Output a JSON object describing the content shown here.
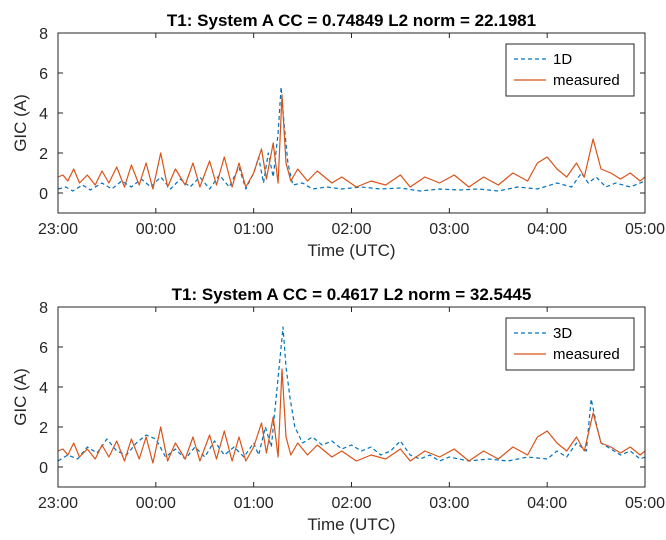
{
  "chart_data": [
    {
      "type": "line",
      "title": "T1: System A   CC = 0.74849  L2 norm = 22.1981",
      "xlabel": "Time (UTC)",
      "ylabel": "GIC (A)",
      "x_tick_labels": [
        "23:00",
        "00:00",
        "01:00",
        "02:00",
        "03:00",
        "04:00",
        "05:00"
      ],
      "x_tick_hours": [
        0,
        1,
        2,
        3,
        4,
        5,
        6
      ],
      "xlim_hours": [
        0,
        6
      ],
      "yticks": [
        0,
        2,
        4,
        6,
        8
      ],
      "ylim": [
        -1,
        8
      ],
      "legend_position": "top-right",
      "series": [
        {
          "name": "1D",
          "color": "#0072BD",
          "style": "dashed",
          "points": [
            [
              0,
              0.2
            ],
            [
              0.08,
              0.3
            ],
            [
              0.15,
              0.1
            ],
            [
              0.25,
              0.4
            ],
            [
              0.33,
              0.15
            ],
            [
              0.45,
              0.5
            ],
            [
              0.55,
              0.2
            ],
            [
              0.65,
              0.6
            ],
            [
              0.75,
              0.3
            ],
            [
              0.85,
              0.7
            ],
            [
              0.95,
              0.3
            ],
            [
              1.05,
              0.8
            ],
            [
              1.15,
              0.2
            ],
            [
              1.25,
              0.7
            ],
            [
              1.35,
              0.3
            ],
            [
              1.45,
              0.8
            ],
            [
              1.55,
              0.2
            ],
            [
              1.65,
              0.9
            ],
            [
              1.75,
              0.3
            ],
            [
              1.85,
              1.3
            ],
            [
              1.92,
              0.2
            ],
            [
              2.0,
              1.0
            ],
            [
              2.05,
              1.8
            ],
            [
              2.1,
              0.5
            ],
            [
              2.15,
              2.0
            ],
            [
              2.2,
              0.8
            ],
            [
              2.25,
              3.0
            ],
            [
              2.28,
              5.3
            ],
            [
              2.31,
              3.5
            ],
            [
              2.35,
              1.5
            ],
            [
              2.4,
              0.4
            ],
            [
              2.5,
              0.5
            ],
            [
              2.6,
              0.2
            ],
            [
              2.75,
              0.3
            ],
            [
              2.9,
              0.2
            ],
            [
              3.1,
              0.3
            ],
            [
              3.3,
              0.2
            ],
            [
              3.5,
              0.25
            ],
            [
              3.7,
              0.1
            ],
            [
              3.9,
              0.2
            ],
            [
              4.1,
              0.15
            ],
            [
              4.3,
              0.2
            ],
            [
              4.5,
              0.1
            ],
            [
              4.7,
              0.3
            ],
            [
              4.9,
              0.2
            ],
            [
              5.1,
              0.5
            ],
            [
              5.25,
              0.3
            ],
            [
              5.35,
              1.0
            ],
            [
              5.42,
              0.5
            ],
            [
              5.5,
              0.8
            ],
            [
              5.6,
              0.3
            ],
            [
              5.7,
              0.5
            ],
            [
              5.85,
              0.3
            ],
            [
              6.0,
              0.6
            ]
          ]
        },
        {
          "name": "measured",
          "color": "#D95319",
          "style": "solid",
          "points": [
            [
              0,
              0.8
            ],
            [
              0.05,
              0.9
            ],
            [
              0.1,
              0.6
            ],
            [
              0.16,
              1.2
            ],
            [
              0.22,
              0.5
            ],
            [
              0.3,
              0.9
            ],
            [
              0.38,
              0.4
            ],
            [
              0.45,
              1.1
            ],
            [
              0.52,
              0.5
            ],
            [
              0.6,
              1.3
            ],
            [
              0.68,
              0.3
            ],
            [
              0.75,
              1.4
            ],
            [
              0.83,
              0.4
            ],
            [
              0.9,
              1.5
            ],
            [
              0.97,
              0.2
            ],
            [
              1.05,
              2.0
            ],
            [
              1.12,
              0.3
            ],
            [
              1.2,
              1.2
            ],
            [
              1.3,
              0.4
            ],
            [
              1.38,
              1.5
            ],
            [
              1.45,
              0.3
            ],
            [
              1.55,
              1.6
            ],
            [
              1.62,
              0.4
            ],
            [
              1.7,
              1.8
            ],
            [
              1.78,
              0.3
            ],
            [
              1.85,
              1.5
            ],
            [
              1.92,
              0.3
            ],
            [
              2.0,
              1.0
            ],
            [
              2.08,
              2.2
            ],
            [
              2.13,
              0.7
            ],
            [
              2.2,
              2.5
            ],
            [
              2.25,
              0.5
            ],
            [
              2.29,
              4.9
            ],
            [
              2.33,
              1.5
            ],
            [
              2.38,
              0.6
            ],
            [
              2.45,
              1.2
            ],
            [
              2.55,
              0.6
            ],
            [
              2.65,
              1.1
            ],
            [
              2.8,
              0.5
            ],
            [
              2.9,
              0.8
            ],
            [
              3.05,
              0.3
            ],
            [
              3.2,
              0.6
            ],
            [
              3.35,
              0.4
            ],
            [
              3.5,
              0.9
            ],
            [
              3.6,
              0.3
            ],
            [
              3.75,
              0.8
            ],
            [
              3.9,
              0.5
            ],
            [
              4.05,
              0.9
            ],
            [
              4.2,
              0.3
            ],
            [
              4.35,
              0.8
            ],
            [
              4.5,
              0.4
            ],
            [
              4.65,
              1.0
            ],
            [
              4.8,
              0.6
            ],
            [
              4.9,
              1.5
            ],
            [
              5.0,
              1.8
            ],
            [
              5.1,
              1.2
            ],
            [
              5.2,
              0.8
            ],
            [
              5.3,
              1.5
            ],
            [
              5.38,
              0.8
            ],
            [
              5.47,
              2.7
            ],
            [
              5.55,
              1.2
            ],
            [
              5.65,
              1.0
            ],
            [
              5.75,
              0.7
            ],
            [
              5.85,
              1.0
            ],
            [
              5.95,
              0.6
            ],
            [
              6.0,
              0.8
            ]
          ]
        }
      ]
    },
    {
      "type": "line",
      "title": "T1: System A   CC = 0.4617  L2 norm = 32.5445",
      "xlabel": "Time (UTC)",
      "ylabel": "GIC (A)",
      "x_tick_labels": [
        "23:00",
        "00:00",
        "01:00",
        "02:00",
        "03:00",
        "04:00",
        "05:00"
      ],
      "x_tick_hours": [
        0,
        1,
        2,
        3,
        4,
        5,
        6
      ],
      "xlim_hours": [
        0,
        6
      ],
      "yticks": [
        0,
        2,
        4,
        6,
        8
      ],
      "ylim": [
        -1,
        8
      ],
      "legend_position": "top-right",
      "series": [
        {
          "name": "3D",
          "color": "#0072BD",
          "style": "dashed",
          "points": [
            [
              0,
              0.3
            ],
            [
              0.1,
              0.6
            ],
            [
              0.2,
              0.4
            ],
            [
              0.3,
              1.0
            ],
            [
              0.4,
              0.7
            ],
            [
              0.5,
              1.4
            ],
            [
              0.6,
              0.8
            ],
            [
              0.7,
              0.6
            ],
            [
              0.8,
              1.2
            ],
            [
              0.9,
              1.6
            ],
            [
              1.0,
              1.4
            ],
            [
              1.1,
              0.5
            ],
            [
              1.2,
              0.9
            ],
            [
              1.3,
              0.4
            ],
            [
              1.4,
              1.0
            ],
            [
              1.5,
              0.5
            ],
            [
              1.6,
              1.3
            ],
            [
              1.7,
              0.6
            ],
            [
              1.8,
              1.0
            ],
            [
              1.9,
              0.5
            ],
            [
              2.0,
              1.2
            ],
            [
              2.05,
              0.6
            ],
            [
              2.12,
              2.0
            ],
            [
              2.18,
              1.0
            ],
            [
              2.23,
              3.5
            ],
            [
              2.28,
              6.0
            ],
            [
              2.3,
              7.0
            ],
            [
              2.33,
              5.0
            ],
            [
              2.37,
              3.5
            ],
            [
              2.42,
              2.0
            ],
            [
              2.5,
              1.2
            ],
            [
              2.6,
              1.5
            ],
            [
              2.7,
              1.1
            ],
            [
              2.8,
              1.3
            ],
            [
              2.9,
              0.9
            ],
            [
              3.0,
              1.1
            ],
            [
              3.1,
              0.8
            ],
            [
              3.2,
              1.0
            ],
            [
              3.3,
              0.6
            ],
            [
              3.4,
              0.8
            ],
            [
              3.5,
              1.3
            ],
            [
              3.6,
              0.6
            ],
            [
              3.7,
              0.4
            ],
            [
              3.8,
              0.6
            ],
            [
              3.9,
              0.3
            ],
            [
              4.0,
              0.5
            ],
            [
              4.2,
              0.3
            ],
            [
              4.4,
              0.4
            ],
            [
              4.6,
              0.3
            ],
            [
              4.8,
              0.5
            ],
            [
              5.0,
              0.4
            ],
            [
              5.1,
              0.8
            ],
            [
              5.2,
              0.5
            ],
            [
              5.3,
              1.2
            ],
            [
              5.4,
              0.8
            ],
            [
              5.45,
              3.4
            ],
            [
              5.5,
              2.2
            ],
            [
              5.55,
              1.2
            ],
            [
              5.65,
              0.9
            ],
            [
              5.75,
              0.6
            ],
            [
              5.85,
              0.8
            ],
            [
              5.95,
              0.4
            ],
            [
              6.0,
              0.5
            ]
          ]
        },
        {
          "name": "measured",
          "color": "#D95319",
          "style": "solid",
          "points": [
            [
              0,
              0.8
            ],
            [
              0.05,
              0.9
            ],
            [
              0.1,
              0.6
            ],
            [
              0.16,
              1.2
            ],
            [
              0.22,
              0.5
            ],
            [
              0.3,
              0.9
            ],
            [
              0.38,
              0.4
            ],
            [
              0.45,
              1.1
            ],
            [
              0.52,
              0.5
            ],
            [
              0.6,
              1.3
            ],
            [
              0.68,
              0.3
            ],
            [
              0.75,
              1.4
            ],
            [
              0.83,
              0.4
            ],
            [
              0.9,
              1.5
            ],
            [
              0.97,
              0.2
            ],
            [
              1.05,
              2.0
            ],
            [
              1.12,
              0.3
            ],
            [
              1.2,
              1.2
            ],
            [
              1.3,
              0.4
            ],
            [
              1.38,
              1.5
            ],
            [
              1.45,
              0.3
            ],
            [
              1.55,
              1.6
            ],
            [
              1.62,
              0.4
            ],
            [
              1.7,
              1.8
            ],
            [
              1.78,
              0.3
            ],
            [
              1.85,
              1.5
            ],
            [
              1.92,
              0.3
            ],
            [
              2.0,
              1.0
            ],
            [
              2.08,
              2.2
            ],
            [
              2.13,
              0.7
            ],
            [
              2.2,
              2.5
            ],
            [
              2.25,
              0.5
            ],
            [
              2.29,
              4.9
            ],
            [
              2.33,
              1.5
            ],
            [
              2.38,
              0.6
            ],
            [
              2.45,
              1.2
            ],
            [
              2.55,
              0.6
            ],
            [
              2.65,
              1.1
            ],
            [
              2.8,
              0.5
            ],
            [
              2.9,
              0.8
            ],
            [
              3.05,
              0.3
            ],
            [
              3.2,
              0.6
            ],
            [
              3.35,
              0.4
            ],
            [
              3.5,
              0.9
            ],
            [
              3.6,
              0.3
            ],
            [
              3.75,
              0.8
            ],
            [
              3.9,
              0.5
            ],
            [
              4.05,
              0.9
            ],
            [
              4.2,
              0.3
            ],
            [
              4.35,
              0.8
            ],
            [
              4.5,
              0.4
            ],
            [
              4.65,
              1.0
            ],
            [
              4.8,
              0.6
            ],
            [
              4.9,
              1.5
            ],
            [
              5.0,
              1.8
            ],
            [
              5.1,
              1.2
            ],
            [
              5.2,
              0.8
            ],
            [
              5.3,
              1.5
            ],
            [
              5.38,
              0.8
            ],
            [
              5.47,
              2.7
            ],
            [
              5.55,
              1.2
            ],
            [
              5.65,
              1.0
            ],
            [
              5.75,
              0.7
            ],
            [
              5.85,
              1.0
            ],
            [
              5.95,
              0.6
            ],
            [
              6.0,
              0.8
            ]
          ]
        }
      ]
    }
  ]
}
